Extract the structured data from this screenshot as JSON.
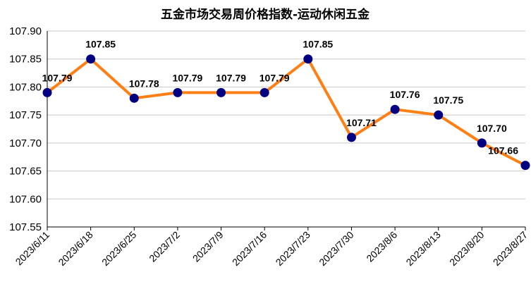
{
  "chart_data": {
    "type": "line",
    "title": "五金市场交易周价格指数-运动休闲五金",
    "xlabel": "",
    "ylabel": "",
    "categories": [
      "2023/6/11",
      "2023/6/18",
      "2023/6/25",
      "2023/7/2",
      "2023/7/9",
      "2023/7/16",
      "2023/7/23",
      "2023/7/30",
      "2023/8/6",
      "2023/8/13",
      "2023/8/20",
      "2023/8/27"
    ],
    "values": [
      107.79,
      107.85,
      107.78,
      107.79,
      107.79,
      107.79,
      107.85,
      107.71,
      107.76,
      107.75,
      107.7,
      107.66
    ],
    "data_labels": [
      "107.79",
      "107.85",
      "107.78",
      "107.79",
      "107.79",
      "107.79",
      "107.85",
      "107.71",
      "107.76",
      "107.75",
      "107.70",
      "107.66"
    ],
    "yticks": [
      "107.55",
      "107.60",
      "107.65",
      "107.70",
      "107.75",
      "107.80",
      "107.85",
      "107.90"
    ],
    "ylim": [
      107.55,
      107.9
    ],
    "grid": true,
    "legend": "none",
    "colors": {
      "line": "#FF7F14",
      "marker": "#000080",
      "grid": "#C8C8C8"
    }
  }
}
